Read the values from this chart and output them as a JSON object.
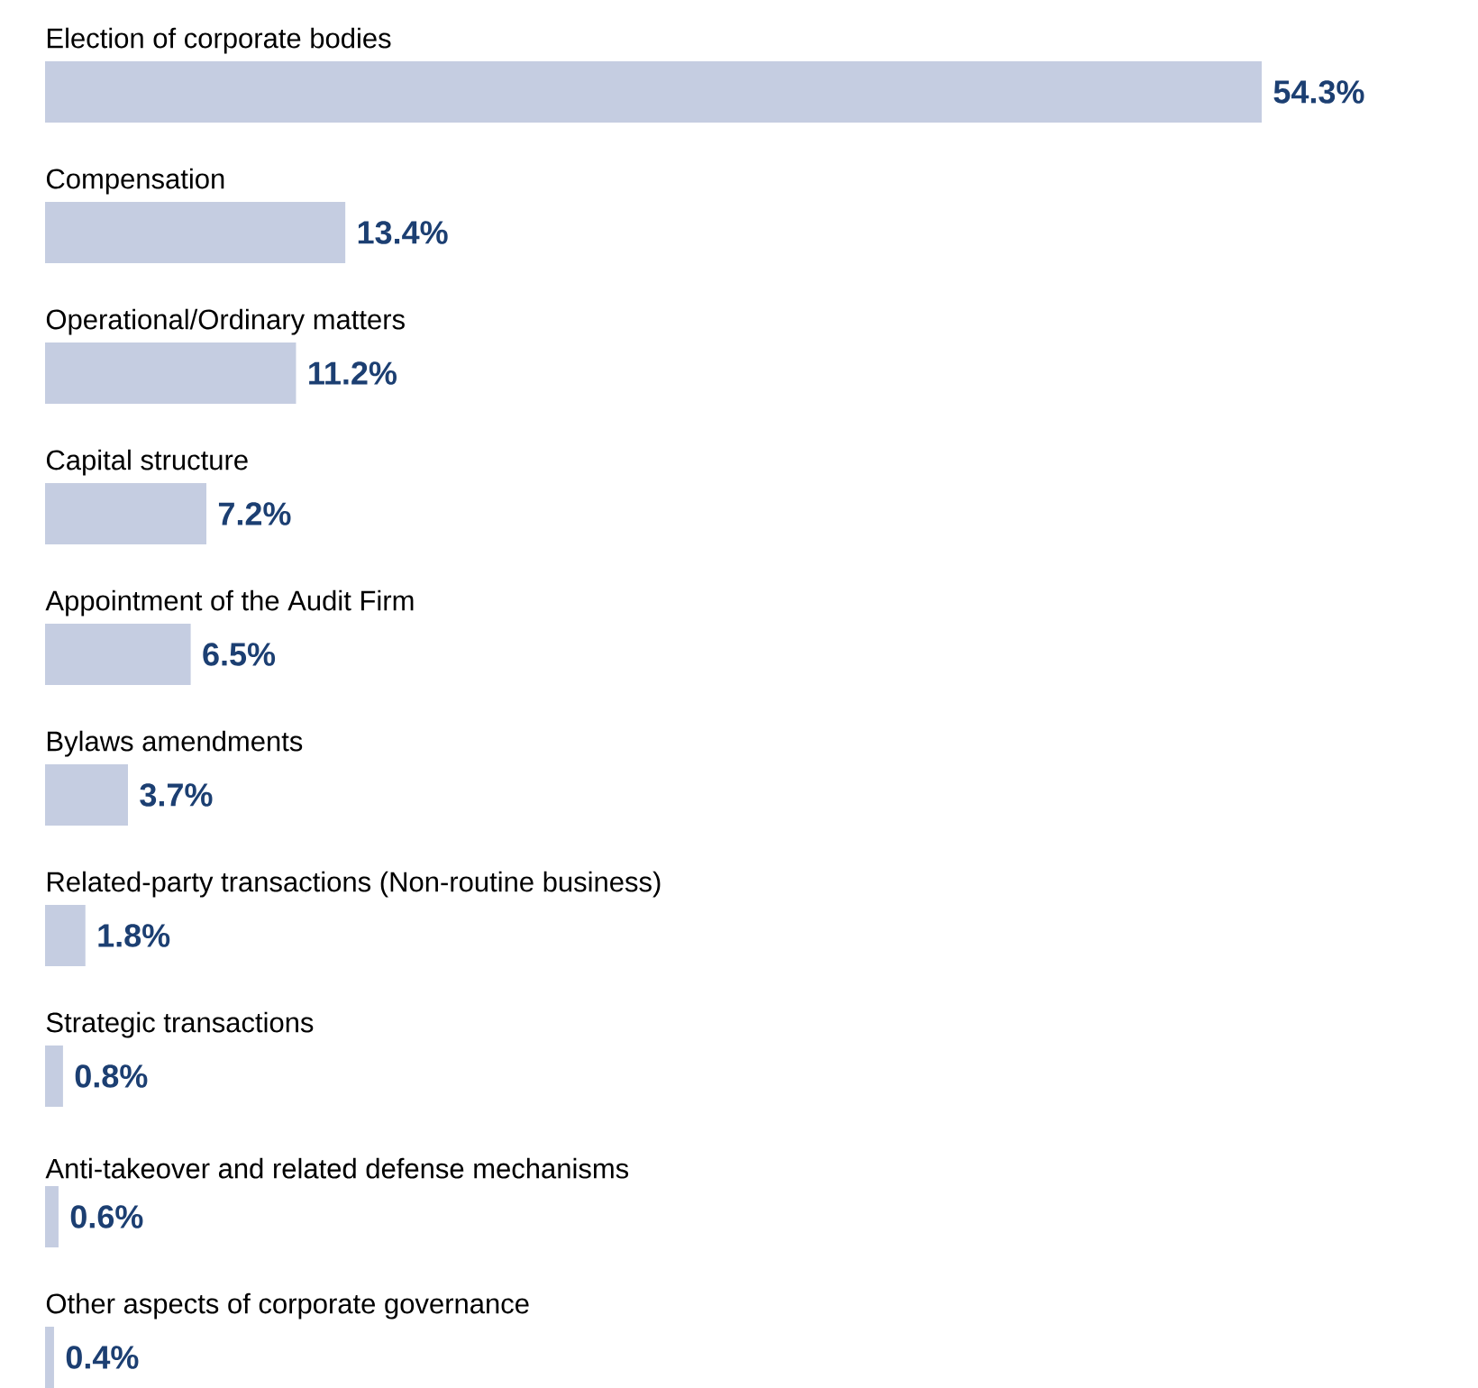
{
  "chart_data": {
    "type": "bar",
    "orientation": "horizontal",
    "categories": [
      "Election of corporate bodies",
      "Compensation",
      "Operational/Ordinary matters",
      "Capital structure",
      "Appointment of the Audit Firm",
      "Bylaws amendments",
      "Related-party transactions (Non-routine business)",
      "Strategic transactions",
      "Anti-takeover and related defense mechanisms",
      "Other aspects of corporate governance"
    ],
    "values": [
      54.3,
      13.4,
      11.2,
      7.2,
      6.5,
      3.7,
      1.8,
      0.8,
      0.6,
      0.4
    ],
    "value_labels": [
      "54.3%",
      "13.4%",
      "11.2%",
      "7.2%",
      "6.5%",
      "3.7%",
      "1.8%",
      "0.8%",
      "0.6%",
      "0.4%"
    ],
    "color": "#c5cde1"
  }
}
